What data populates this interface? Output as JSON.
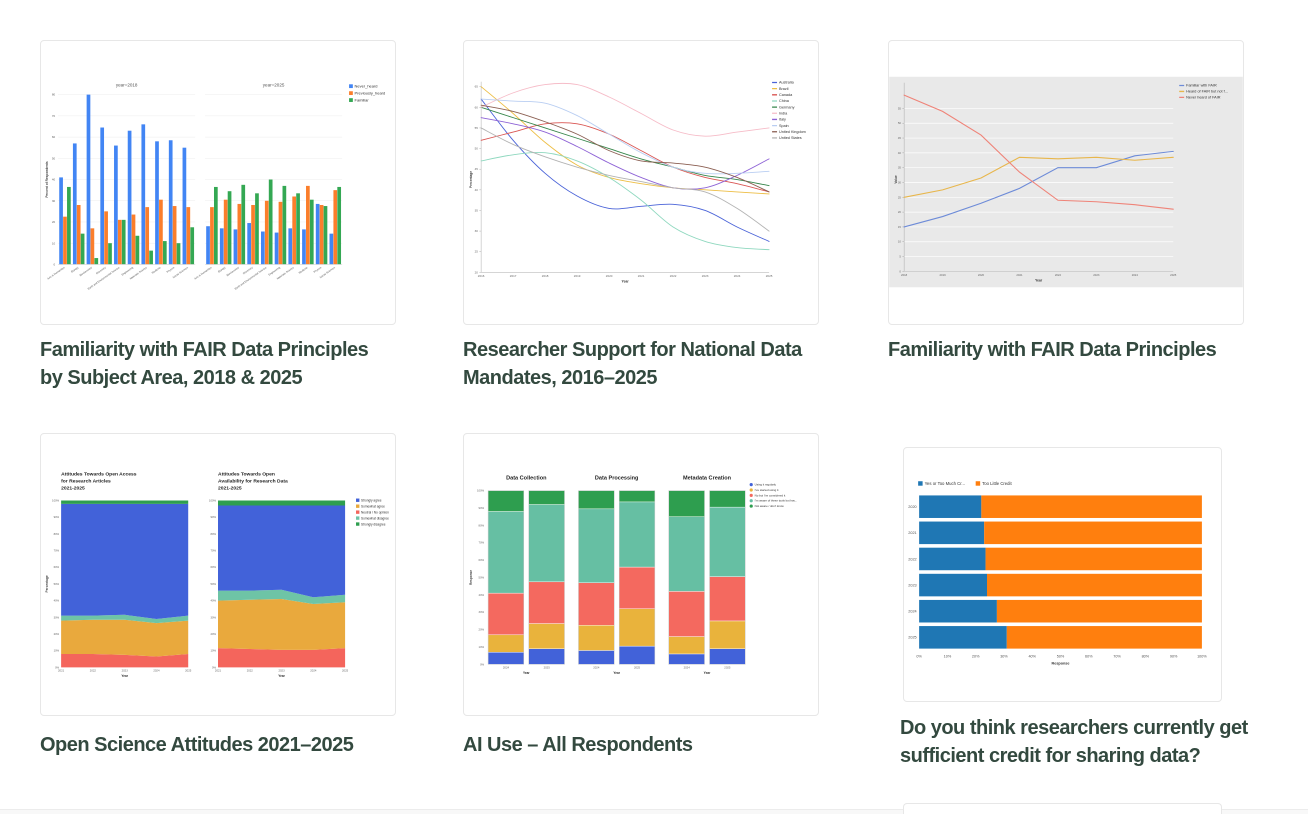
{
  "page": {
    "background": "#ffffff",
    "title_color": "#33493F"
  },
  "cards": [
    {
      "title": "Familiarity with FAIR Data Principles by Subject Area, 2018 & 2025",
      "title_lines": [
        "Familiarity with FAIR Data Principles",
        "by Subject Area, 2018 & 2025"
      ]
    },
    {
      "title": "Researcher Support for National Data Mandates, 2016–2025",
      "title_lines": [
        "Researcher Support for National Data",
        "Mandates, 2016–2025"
      ]
    },
    {
      "title": "Familiarity with FAIR Data Principles",
      "title_lines": [
        "Familiarity with FAIR Data Principles",
        ""
      ]
    },
    {
      "title": "Open Science Attitudes 2021–2025",
      "title_lines": [
        "Open Science Attitudes 2021–2025",
        ""
      ]
    },
    {
      "title": "AI Use – All Respondents",
      "title_lines": [
        "AI Use – All Respondents",
        ""
      ]
    },
    {
      "title": "Do you think researchers currently get sufficient credit for sharing data?",
      "title_lines": [
        "Do you think researchers currently get",
        "sufficient credit for sharing data?"
      ]
    }
  ],
  "chart_data": [
    {
      "id": "fair-by-subject-area",
      "type": "bar",
      "layout": "grouped-faceted",
      "ylabel": "Percent of Respondents",
      "ylim": [
        0,
        80
      ],
      "yticks": [
        0,
        10,
        20,
        30,
        40,
        50,
        60,
        70,
        80
      ],
      "categories": [
        "Arts & Humanities",
        "Biology",
        "Biochemistry",
        "Chemistry",
        "Earth and Environmental Science",
        "Engineering",
        "Materials Science",
        "Medicine",
        "Physics",
        "Social Sciences"
      ],
      "series_names": [
        "Never_heard",
        "Previously_heard",
        "Familiar"
      ],
      "series_colors": [
        "#4285F4",
        "#FB7E2B",
        "#34A853"
      ],
      "facets": [
        {
          "label": "year=2018",
          "series_values": [
            [
              41,
              57,
              80,
              64.5,
              56,
              63,
              66,
              58,
              58.5,
              55
            ],
            [
              22.5,
              28,
              17,
              25,
              21,
              23.5,
              27,
              30.5,
              27.5,
              27
            ],
            [
              36.5,
              14.5,
              3,
              10,
              21,
              13.5,
              6.5,
              11,
              10,
              17.5
            ]
          ]
        },
        {
          "label": "year=2025",
          "series_values": [
            [
              18,
              17,
              16.5,
              19.5,
              15.5,
              15,
              17,
              16.5,
              28.5,
              14.5
            ],
            [
              27,
              30.5,
              28.5,
              28,
              30,
              29.5,
              32,
              37,
              28,
              35
            ],
            [
              36.5,
              34.5,
              37.5,
              33.5,
              40,
              37,
              33.5,
              30.5,
              27.5,
              36.5
            ]
          ]
        }
      ]
    },
    {
      "id": "national-data-mandates",
      "type": "line",
      "smooth": true,
      "xlabel": "Year",
      "ylabel": "Percentage",
      "x": [
        2016,
        2017,
        2018,
        2019,
        2020,
        2021,
        2022,
        2023,
        2024,
        2025
      ],
      "ylim": [
        20,
        65
      ],
      "ytick_step": 5,
      "series": [
        {
          "name": "Australia",
          "color": "#4A63D8",
          "values": [
            62,
            52,
            44,
            38.5,
            35.5,
            36,
            36.5,
            35,
            31,
            27.5
          ]
        },
        {
          "name": "Brazil",
          "color": "#EDBE45",
          "values": [
            65,
            58.5,
            51.5,
            46,
            43,
            41.5,
            40.5,
            40,
            39.5,
            39
          ]
        },
        {
          "name": "Canada",
          "color": "#D95552",
          "values": [
            52,
            54,
            56,
            56,
            53.5,
            49.5,
            45.5,
            43,
            41.5,
            39.5
          ]
        },
        {
          "name": "China",
          "color": "#8FD8BF",
          "values": [
            47,
            48.5,
            49,
            47,
            43,
            37.5,
            31,
            27.5,
            26,
            25.5
          ]
        },
        {
          "name": "Germany",
          "color": "#36864B",
          "values": [
            60,
            57.5,
            55,
            52.5,
            50,
            47.5,
            45.5,
            43.5,
            42.5,
            41
          ]
        },
        {
          "name": "India",
          "color": "#F6BCC8",
          "values": [
            60,
            63.5,
            65.5,
            65.5,
            62.5,
            58.5,
            54.5,
            53,
            54,
            55
          ]
        },
        {
          "name": "Italy",
          "color": "#8E63D6",
          "values": [
            57.5,
            56,
            54,
            50.5,
            46.5,
            43,
            40.5,
            40.5,
            43.5,
            47.5
          ]
        },
        {
          "name": "Spain",
          "color": "#B9CEF2",
          "values": [
            62,
            61.5,
            61,
            58,
            53.5,
            49,
            45.5,
            44,
            44,
            44.5
          ]
        },
        {
          "name": "United Kingdom",
          "color": "#8B5F52",
          "values": [
            60.5,
            59,
            56.5,
            53.5,
            49.5,
            47,
            46.5,
            45.5,
            43,
            39.5
          ]
        },
        {
          "name": "United States",
          "color": "#B3B3B3",
          "values": [
            55,
            51,
            48,
            45.5,
            43.5,
            42,
            40.5,
            39.5,
            35.5,
            30
          ]
        }
      ]
    },
    {
      "id": "fair-familiarity-trend",
      "type": "line",
      "smooth": false,
      "plot_bg": "#E9E9E9",
      "xlabel": "Year",
      "ylabel": "Value",
      "x": [
        2018,
        2019,
        2020,
        2021,
        2022,
        2023,
        2024,
        2025
      ],
      "ylim": [
        0,
        62
      ],
      "ytick_step": 5,
      "ytick_max": 55,
      "series": [
        {
          "name": "Familiar with FAIR",
          "color": "#6D8BD8",
          "values": [
            15,
            18.5,
            23,
            28,
            35,
            35,
            39,
            40.5
          ]
        },
        {
          "name": "Heard of FAIR but not f...",
          "color": "#E8B64B",
          "values": [
            25,
            27.5,
            31.5,
            38.5,
            38,
            38.5,
            37.5,
            38.5
          ]
        },
        {
          "name": "Never heard of FAIR",
          "color": "#EF8378",
          "values": [
            59.5,
            54,
            46,
            33.5,
            24,
            23.5,
            22.5,
            21
          ]
        }
      ]
    },
    {
      "id": "open-science-attitudes",
      "type": "area",
      "xlabel": "Year",
      "ylabel": "Percentage",
      "legend": [
        "Strongly agree",
        "Somewhat agree",
        "Neutral / No opinion",
        "Somewhat disagree",
        "Strongly disagree"
      ],
      "legend_colors": [
        "#4262D9",
        "#E9A93D",
        "#F4655C",
        "#6EC4A6",
        "#2E9E4F"
      ],
      "subplots": [
        {
          "title_lines": [
            "Attitudes Towards Open Access",
            "for Research Articles",
            "2021-2025"
          ],
          "x": [
            2021,
            2022,
            2023,
            2024,
            2025
          ],
          "stacks": [
            {
              "name": "Neutral / No opinion",
              "color": "#F4655C",
              "values": [
                8,
                8,
                7.5,
                6.5,
                8
              ]
            },
            {
              "name": "Somewhat agree",
              "color": "#E9A93D",
              "values": [
                20,
                20.5,
                21,
                20,
                20
              ]
            },
            {
              "name": "Somewhat disagree",
              "color": "#6EC4A6",
              "values": [
                3,
                2.5,
                3,
                2.5,
                3
              ]
            },
            {
              "name": "Strongly agree",
              "color": "#4262D9",
              "values": [
                67,
                67,
                66.5,
                69,
                67
              ]
            },
            {
              "name": "Strongly disagree",
              "color": "#2E9E4F",
              "values": [
                2,
                2,
                2,
                2,
                2
              ]
            }
          ]
        },
        {
          "title_lines": [
            "Attitudes Towards Open",
            "Availability for Research Data",
            "2021-2025"
          ],
          "x": [
            2021,
            2022,
            2023,
            2024,
            2025
          ],
          "stacks": [
            {
              "name": "Neutral / No opinion",
              "color": "#F4655C",
              "values": [
                11.5,
                11,
                10.5,
                10.5,
                11.5
              ]
            },
            {
              "name": "Somewhat agree",
              "color": "#E9A93D",
              "values": [
                28.5,
                29.5,
                30.5,
                27.5,
                27.5
              ]
            },
            {
              "name": "Somewhat disagree",
              "color": "#6EC4A6",
              "values": [
                6,
                5.5,
                5.5,
                4,
                4.5
              ]
            },
            {
              "name": "Strongly agree",
              "color": "#4262D9",
              "values": [
                51,
                51,
                50.5,
                55,
                53.5
              ]
            },
            {
              "name": "Strongly disagree",
              "color": "#2E9E4F",
              "values": [
                3,
                3,
                3,
                3,
                3
              ]
            }
          ]
        }
      ]
    },
    {
      "id": "ai-use-all-respondents",
      "type": "bar",
      "layout": "stacked-faceted",
      "xlabel": "Year",
      "ylabel": "Response",
      "series_names": [
        "Using it regularly",
        "I've started using it",
        "No but I've considered it",
        "I'm aware of these tools but hav...",
        "Not aware / don't know"
      ],
      "series_colors": [
        "#4262D9",
        "#E9B33C",
        "#F4695F",
        "#66BFA3",
        "#2E9E4F"
      ],
      "facets": [
        {
          "label": "Data Collection",
          "bars": [
            {
              "x": 2024,
              "values": [
                7,
                10,
                24,
                47,
                12
              ]
            },
            {
              "x": 2025,
              "values": [
                9,
                14.5,
                24,
                44.5,
                8
              ]
            }
          ]
        },
        {
          "label": "Data Processing",
          "bars": [
            {
              "x": 2024,
              "values": [
                8,
                14.5,
                24.5,
                42.5,
                10.5
              ]
            },
            {
              "x": 2025,
              "values": [
                10.5,
                21.5,
                24,
                37.5,
                6.5
              ]
            }
          ]
        },
        {
          "label": "Metadata Creation",
          "bars": [
            {
              "x": 2024,
              "values": [
                6,
                10,
                26,
                43,
                15
              ]
            },
            {
              "x": 2025,
              "values": [
                9,
                16,
                25.5,
                40,
                9.5
              ]
            }
          ]
        }
      ]
    },
    {
      "id": "credit-for-sharing-data",
      "type": "bar",
      "layout": "horizontal-stacked",
      "xlabel": "Response",
      "categories": [
        "2020",
        "2021",
        "2022",
        "2023",
        "2024",
        "2025"
      ],
      "series": [
        {
          "name": "Yes or Too Much Cr...",
          "color": "#1F77B4",
          "values": [
            22,
            23,
            23.5,
            24,
            27.5,
            31
          ]
        },
        {
          "name": "Too Little Credit",
          "color": "#FF7F0E",
          "values": [
            78,
            77,
            76.5,
            76,
            72.5,
            69
          ]
        }
      ],
      "xticks": [
        "0%",
        "10%",
        "20%",
        "30%",
        "40%",
        "50%",
        "60%",
        "70%",
        "80%",
        "90%",
        "100%"
      ]
    }
  ]
}
